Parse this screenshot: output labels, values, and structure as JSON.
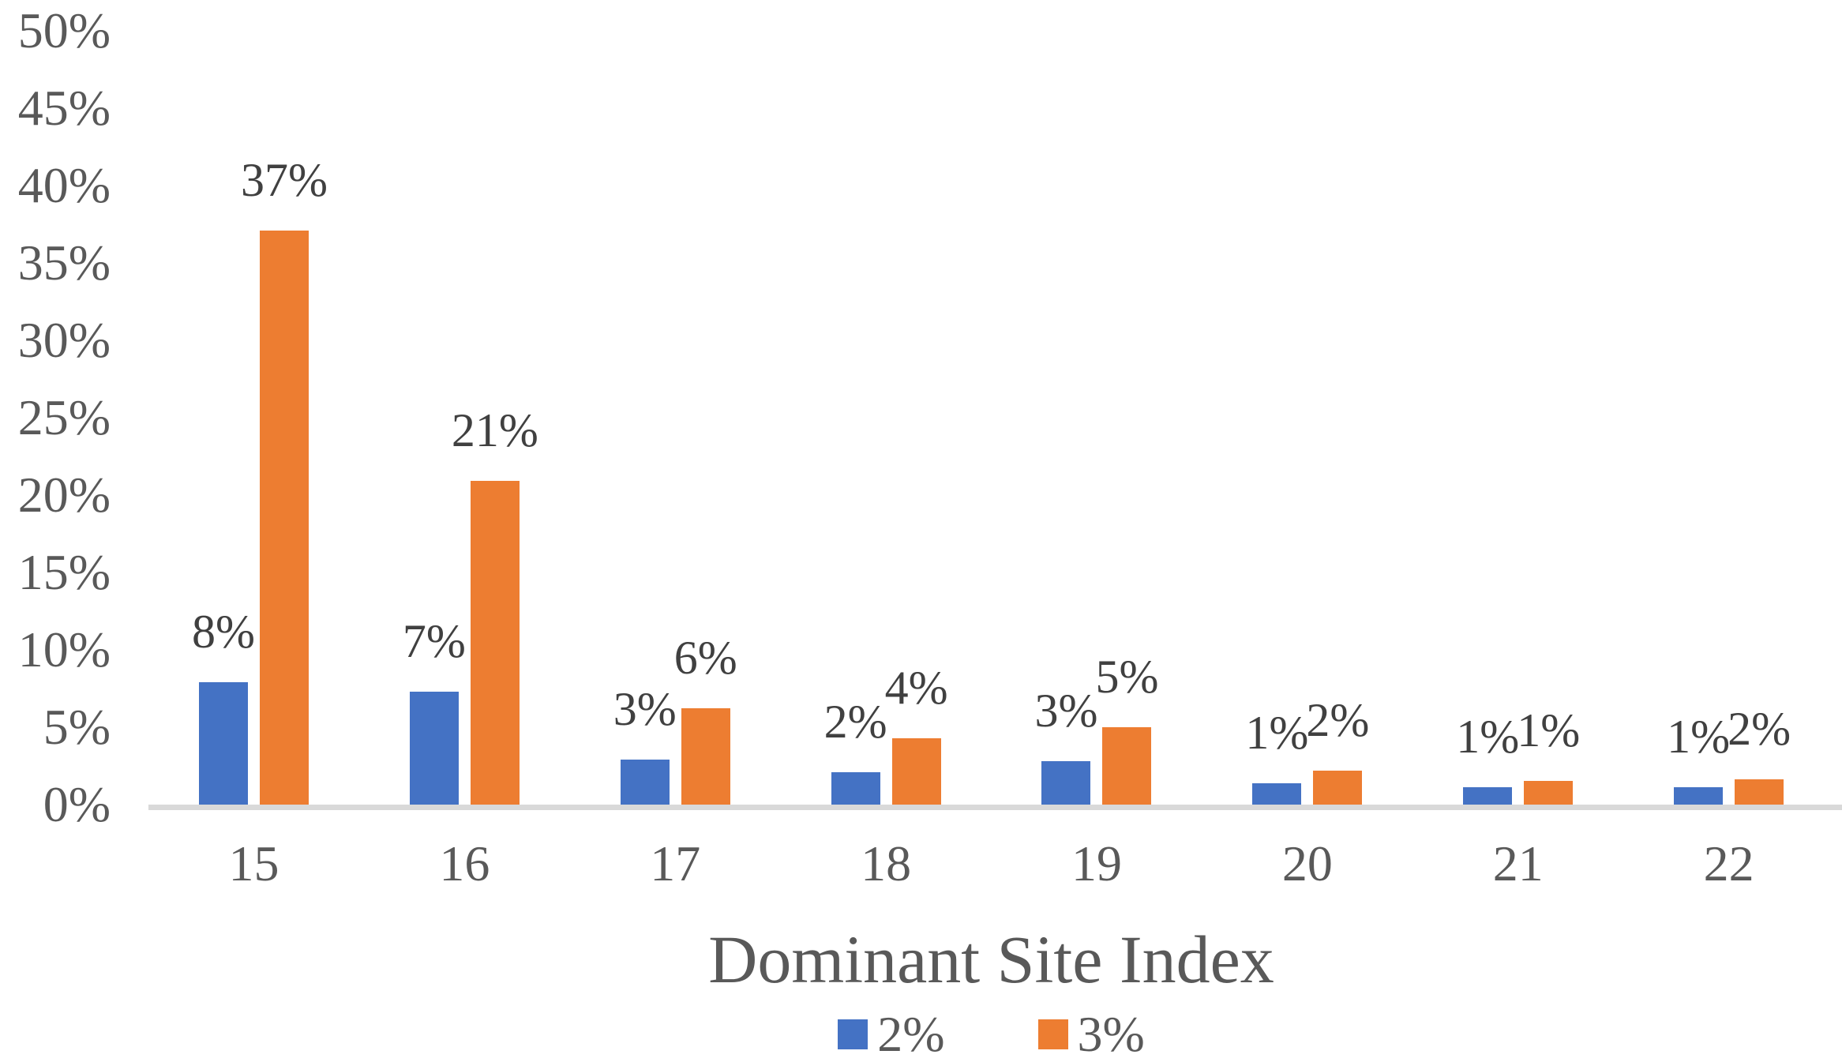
{
  "chart_data": {
    "type": "bar",
    "title": "",
    "xlabel": "Dominant Site Index",
    "ylabel": "",
    "categories": [
      "15",
      "16",
      "17",
      "18",
      "19",
      "20",
      "21",
      "22"
    ],
    "series": [
      {
        "name": "2%",
        "color": "#4472C4",
        "values": [
          8,
          7,
          3,
          2,
          3,
          1,
          1,
          1
        ],
        "labels": [
          "8%",
          "7%",
          "3%",
          "2%",
          "3%",
          "1%",
          "1%",
          "1%"
        ],
        "bar_heights_pct": [
          7.9,
          7.3,
          2.9,
          2.1,
          2.8,
          1.4,
          1.1,
          1.1
        ]
      },
      {
        "name": "3%",
        "color": "#ED7D31",
        "values": [
          37,
          21,
          6,
          4,
          5,
          2,
          1,
          2
        ],
        "labels": [
          "37%",
          "21%",
          "6%",
          "4%",
          "5%",
          "2%",
          "1%",
          "2%"
        ],
        "bar_heights_pct": [
          37.1,
          20.9,
          6.2,
          4.3,
          5.0,
          2.2,
          1.55,
          1.65
        ]
      }
    ],
    "ylim": [
      0,
      50
    ],
    "ytick_step": 5,
    "ytick_labels": [
      "50%",
      "45%",
      "40%",
      "35%",
      "30%",
      "25%",
      "20%",
      "15%",
      "10%",
      "5%",
      "0%"
    ],
    "grid": false,
    "legend_position": "bottom",
    "axis_line_color": "#D9D9D9",
    "tick_text_color": "#595959",
    "data_label_color": "#404040"
  }
}
